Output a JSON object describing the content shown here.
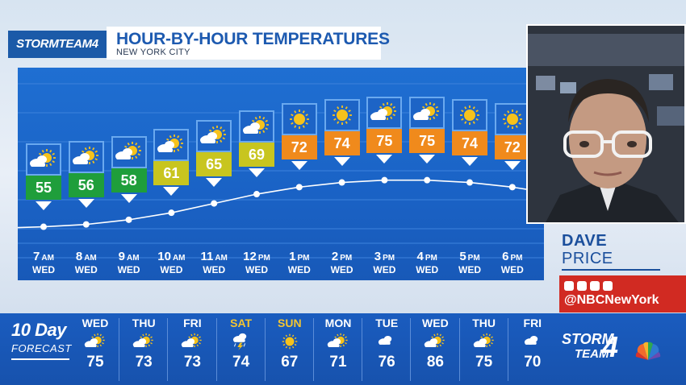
{
  "header": {
    "logo": "STORMTEAM4",
    "title": "HOUR-BY-HOUR TEMPERATURES",
    "subtitle": "NEW YORK CITY"
  },
  "hourly": [
    {
      "time": "7",
      "ampm": "AM",
      "day": "WED",
      "temp": "55",
      "icon": "partly-sunny-icon",
      "color": "#1f9e3b"
    },
    {
      "time": "8",
      "ampm": "AM",
      "day": "WED",
      "temp": "56",
      "icon": "partly-sunny-icon",
      "color": "#1f9e3b"
    },
    {
      "time": "9",
      "ampm": "AM",
      "day": "WED",
      "temp": "58",
      "icon": "partly-sunny-icon",
      "color": "#1f9e3b"
    },
    {
      "time": "10",
      "ampm": "AM",
      "day": "WED",
      "temp": "61",
      "icon": "partly-sunny-icon",
      "color": "#c8c51f"
    },
    {
      "time": "11",
      "ampm": "AM",
      "day": "WED",
      "temp": "65",
      "icon": "partly-sunny-icon",
      "color": "#c8c51f"
    },
    {
      "time": "12",
      "ampm": "PM",
      "day": "WED",
      "temp": "69",
      "icon": "partly-sunny-icon",
      "color": "#c8c51f"
    },
    {
      "time": "1",
      "ampm": "PM",
      "day": "WED",
      "temp": "72",
      "icon": "sunny-icon",
      "color": "#f08a1c"
    },
    {
      "time": "2",
      "ampm": "PM",
      "day": "WED",
      "temp": "74",
      "icon": "sunny-icon",
      "color": "#f08a1c"
    },
    {
      "time": "3",
      "ampm": "PM",
      "day": "WED",
      "temp": "75",
      "icon": "partly-sunny-icon",
      "color": "#f08a1c"
    },
    {
      "time": "4",
      "ampm": "PM",
      "day": "WED",
      "temp": "75",
      "icon": "partly-sunny-icon",
      "color": "#f08a1c"
    },
    {
      "time": "5",
      "ampm": "PM",
      "day": "WED",
      "temp": "74",
      "icon": "sunny-icon",
      "color": "#f08a1c"
    },
    {
      "time": "6",
      "ampm": "PM",
      "day": "WED",
      "temp": "72",
      "icon": "sunny-icon",
      "color": "#f08a1c"
    }
  ],
  "presenter": {
    "first": "DAVE",
    "last": "PRICE",
    "social_icons": [
      "youtube-icon",
      "instagram-icon",
      "twitter-icon",
      "facebook-icon"
    ],
    "handle": "@NBCNewYork"
  },
  "ten_day": {
    "label_top": "10 Day",
    "label_bottom": "FORECAST",
    "days": [
      {
        "day": "WED",
        "temp": "75",
        "icon": "partly-sunny-icon",
        "weekend": false
      },
      {
        "day": "THU",
        "temp": "73",
        "icon": "partly-sunny-icon",
        "weekend": false
      },
      {
        "day": "FRI",
        "temp": "73",
        "icon": "partly-sunny-icon",
        "weekend": false
      },
      {
        "day": "SAT",
        "temp": "74",
        "icon": "thunderstorm-icon",
        "weekend": true
      },
      {
        "day": "SUN",
        "temp": "67",
        "icon": "sunny-icon",
        "weekend": true
      },
      {
        "day": "MON",
        "temp": "71",
        "icon": "partly-sunny-icon",
        "weekend": false
      },
      {
        "day": "TUE",
        "temp": "76",
        "icon": "cloudy-icon",
        "weekend": false
      },
      {
        "day": "WED",
        "temp": "86",
        "icon": "partly-sunny-icon",
        "weekend": false
      },
      {
        "day": "THU",
        "temp": "75",
        "icon": "partly-sunny-icon",
        "weekend": false
      },
      {
        "day": "FRI",
        "temp": "70",
        "icon": "cloudy-icon",
        "weekend": false
      }
    ]
  },
  "brand": {
    "line1": "STORM",
    "line2": "TEAM",
    "number": "4"
  }
}
